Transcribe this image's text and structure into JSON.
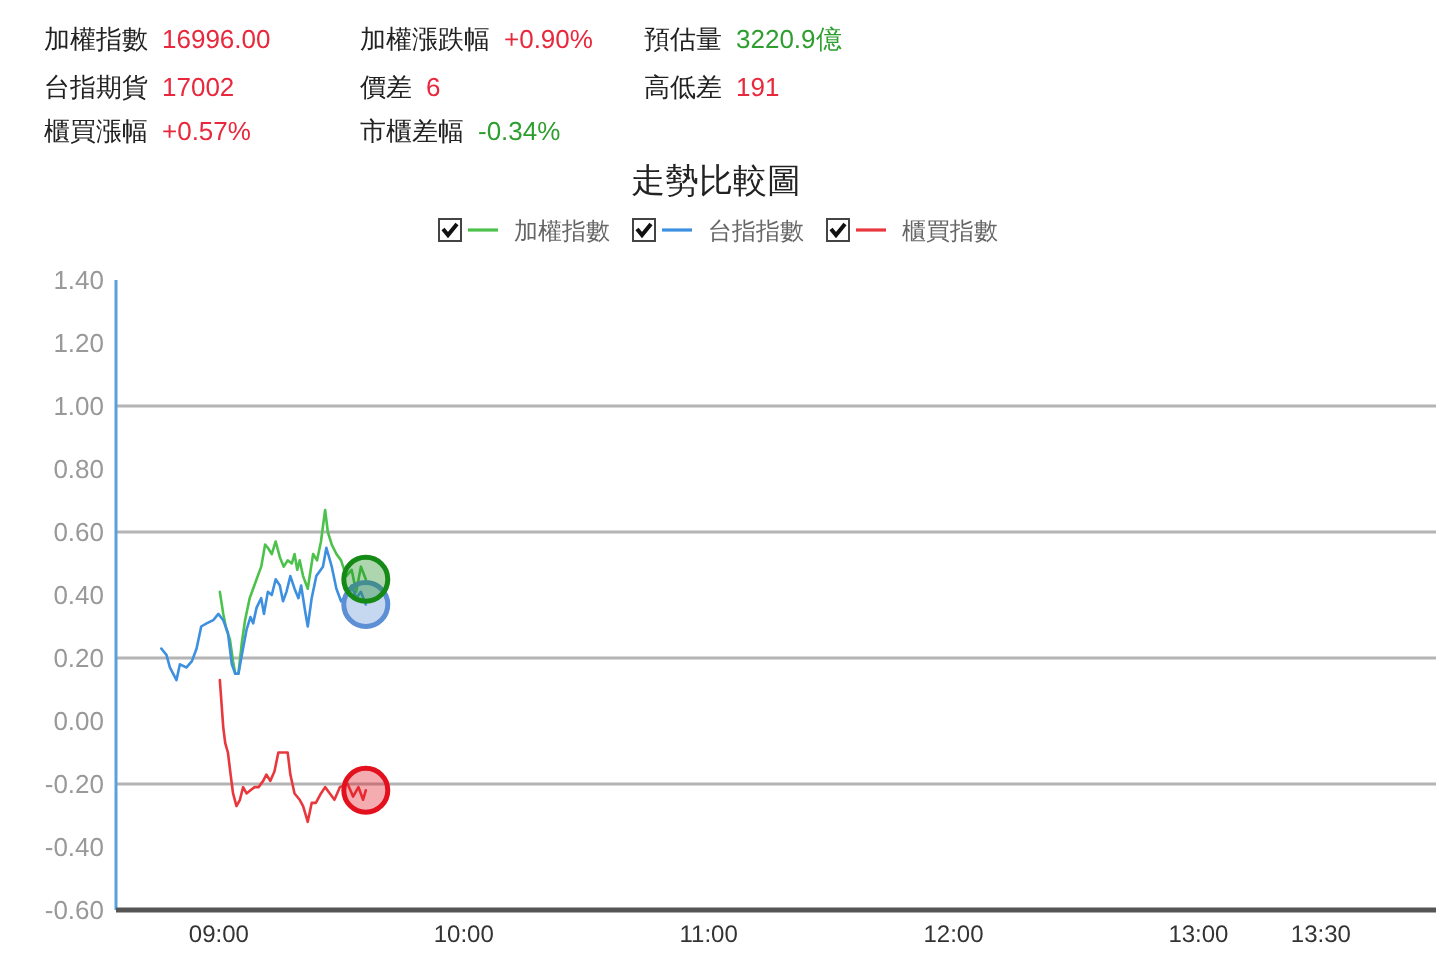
{
  "chart_data": {
    "type": "line",
    "title": "走勢比較圖",
    "annotations": [
      "加權指數",
      "16996.00",
      "加權漲跌幅",
      "+0.90%",
      "預估量",
      "3220.9億",
      "台指期貨",
      "17002",
      "價差",
      "6",
      "高低差",
      "191",
      "櫃買漲幅",
      "+0.57%",
      "市櫃差幅",
      "-0.34%"
    ],
    "series": [
      {
        "name": "加權指數",
        "color": "#4cc24c",
        "x": [
          9.004,
          9.018,
          9.031,
          9.045,
          9.058,
          9.067,
          9.08,
          9.094,
          9.107,
          9.126,
          9.14,
          9.154,
          9.173,
          9.189,
          9.2,
          9.216,
          9.232,
          9.249,
          9.265,
          9.281,
          9.298,
          9.309,
          9.32,
          9.33,
          9.344,
          9.363,
          9.385,
          9.401,
          9.417,
          9.434,
          9.445,
          9.461,
          9.48,
          9.499,
          9.52,
          9.542,
          9.561,
          9.58,
          9.6
        ],
        "values": [
          0.41,
          0.34,
          0.29,
          0.26,
          0.19,
          0.15,
          0.15,
          0.25,
          0.32,
          0.39,
          0.42,
          0.45,
          0.49,
          0.56,
          0.55,
          0.53,
          0.57,
          0.52,
          0.49,
          0.51,
          0.5,
          0.53,
          0.48,
          0.51,
          0.46,
          0.42,
          0.53,
          0.51,
          0.57,
          0.67,
          0.6,
          0.56,
          0.53,
          0.51,
          0.46,
          0.48,
          0.41,
          0.49,
          0.45
        ]
      },
      {
        "name": "台指指數",
        "color": "#3d8fe0",
        "x": [
          8.765,
          8.786,
          8.8,
          8.827,
          8.841,
          8.868,
          8.89,
          8.909,
          8.928,
          8.95,
          8.977,
          8.998,
          9.018,
          9.037,
          9.053,
          9.067,
          9.08,
          9.094,
          9.113,
          9.129,
          9.14,
          9.154,
          9.173,
          9.184,
          9.2,
          9.216,
          9.232,
          9.249,
          9.262,
          9.276,
          9.292,
          9.309,
          9.325,
          9.336,
          9.352,
          9.363,
          9.379,
          9.398,
          9.425,
          9.439,
          9.461,
          9.48,
          9.499,
          9.52,
          9.542,
          9.561,
          9.58,
          9.6
        ],
        "values": [
          0.23,
          0.21,
          0.17,
          0.13,
          0.18,
          0.17,
          0.19,
          0.23,
          0.3,
          0.31,
          0.32,
          0.34,
          0.32,
          0.28,
          0.18,
          0.15,
          0.15,
          0.21,
          0.29,
          0.33,
          0.31,
          0.36,
          0.39,
          0.34,
          0.41,
          0.4,
          0.45,
          0.43,
          0.38,
          0.41,
          0.46,
          0.42,
          0.39,
          0.43,
          0.35,
          0.3,
          0.39,
          0.46,
          0.49,
          0.55,
          0.49,
          0.42,
          0.38,
          0.4,
          0.43,
          0.39,
          0.41,
          0.37
        ]
      },
      {
        "name": "櫃買指數",
        "color": "#e8383d",
        "x": [
          9.004,
          9.018,
          9.026,
          9.037,
          9.048,
          9.058,
          9.072,
          9.086,
          9.099,
          9.113,
          9.129,
          9.146,
          9.162,
          9.181,
          9.194,
          9.21,
          9.227,
          9.243,
          9.265,
          9.281,
          9.292,
          9.309,
          9.33,
          9.344,
          9.363,
          9.379,
          9.396,
          9.417,
          9.434,
          9.453,
          9.472,
          9.494,
          9.526,
          9.548,
          9.57,
          9.589,
          9.6
        ],
        "values": [
          0.13,
          -0.02,
          -0.07,
          -0.1,
          -0.17,
          -0.23,
          -0.27,
          -0.25,
          -0.21,
          -0.23,
          -0.22,
          -0.21,
          -0.21,
          -0.19,
          -0.17,
          -0.19,
          -0.16,
          -0.1,
          -0.1,
          -0.1,
          -0.17,
          -0.23,
          -0.25,
          -0.27,
          -0.32,
          -0.26,
          -0.26,
          -0.23,
          -0.21,
          -0.23,
          -0.25,
          -0.21,
          -0.2,
          -0.24,
          -0.21,
          -0.25,
          -0.22
        ]
      },
      {
        "type": "scatter",
        "marker": "circle",
        "color": "#5d8fd5",
        "x": [
          9.6
        ],
        "values": [
          0.37
        ]
      },
      {
        "type": "scatter",
        "marker": "circle",
        "color": "#168a16",
        "x": [
          9.6
        ],
        "values": [
          0.45
        ]
      },
      {
        "type": "scatter",
        "marker": "circle",
        "color": "#e3101d",
        "x": [
          9.6
        ],
        "values": [
          -0.22
        ]
      }
    ],
    "xlim": [
      8.58,
      13.97
    ],
    "xticks": [
      {
        "value": 9,
        "label": "09:00"
      },
      {
        "value": 10,
        "label": "10:00"
      },
      {
        "value": 11,
        "label": "11:00"
      },
      {
        "value": 12,
        "label": "12:00"
      },
      {
        "value": 13,
        "label": "13:00"
      },
      {
        "value": 13.5,
        "label": "13:30"
      }
    ],
    "ylim": [
      -0.6,
      1.4
    ],
    "yticks": [
      {
        "value": 1.4,
        "label": "1.40"
      },
      {
        "value": 1.2,
        "label": "1.20"
      },
      {
        "value": 1.0,
        "label": "1.00"
      },
      {
        "value": 0.8,
        "label": "0.80"
      },
      {
        "value": 0.6,
        "label": "0.60"
      },
      {
        "value": 0.4,
        "label": "0.40"
      },
      {
        "value": 0.2,
        "label": "0.20"
      },
      {
        "value": 0,
        "label": "0.00"
      },
      {
        "value": -0.2,
        "label": "-0.20"
      },
      {
        "value": -0.4,
        "label": "-0.40"
      },
      {
        "value": -0.6,
        "label": "-0.60"
      }
    ],
    "ref_lines": [
      {
        "axis": "y",
        "value": 1.0,
        "color": "#b4b4b4"
      },
      {
        "axis": "y",
        "value": 0.6,
        "color": "#b4b4b4"
      },
      {
        "axis": "y",
        "value": 0.2,
        "color": "#b4b4b4"
      },
      {
        "axis": "y",
        "value": -0.2,
        "color": "#b4b4b4"
      }
    ],
    "legend": "top"
  }
}
